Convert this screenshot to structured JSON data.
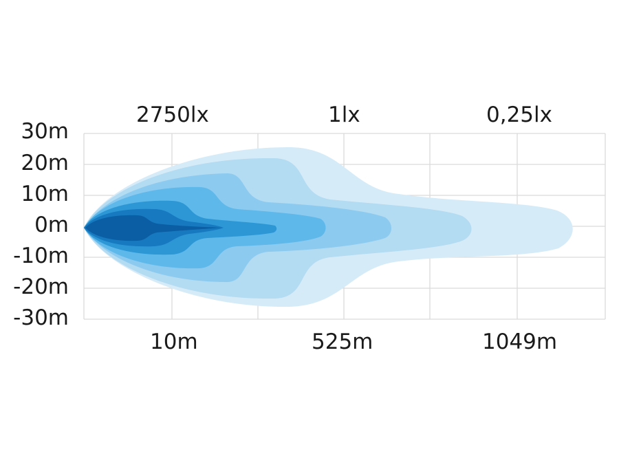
{
  "lux_labels": {
    "near": "2750lx",
    "mid": "1lx",
    "far": "0,25lx"
  },
  "distance_labels": {
    "near": "10m",
    "mid": "525m",
    "far": "1049m"
  },
  "y_axis_labels": [
    "30m",
    "20m",
    "10m",
    "0m",
    "-10m",
    "-20m",
    "-30m"
  ],
  "colors": {
    "zone_1": "#d6ebf8",
    "zone_2": "#b3dbf2",
    "zone_3": "#8ccaef",
    "zone_4": "#5fb8ea",
    "zone_5": "#2d97d6",
    "zone_6": "#1779bf",
    "zone_7": "#0b5ea3",
    "grid": "#dadada"
  }
}
